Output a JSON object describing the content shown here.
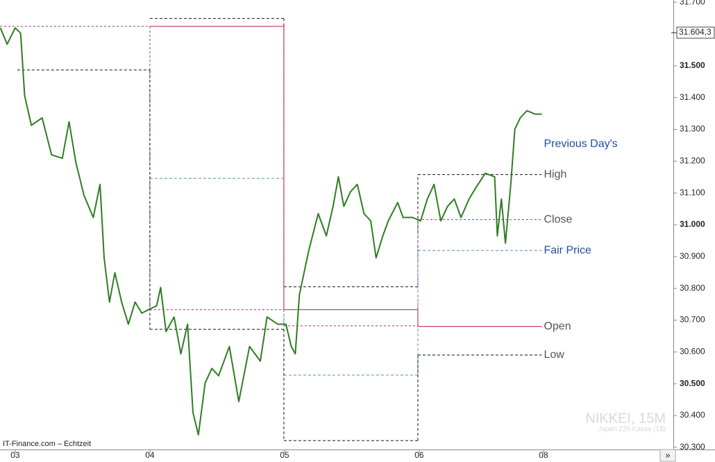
{
  "chart_data": {
    "type": "line",
    "watermark": "NIKKEI, 15M",
    "watermark_sub": "Japan 225 Kassa (1$)",
    "source": "IT-Finance.com – Echtzeit",
    "nav_button": "»",
    "legend_title": "Previous Day's",
    "x": [
      -0.11,
      -0.06,
      0,
      0.04,
      0.07,
      0.12,
      0.2,
      0.27,
      0.35,
      0.4,
      0.45,
      0.51,
      0.58,
      0.63,
      0.66,
      0.7,
      0.74,
      0.79,
      0.84,
      0.89,
      0.94,
      0.99,
      1.05,
      1.08,
      1.12,
      1.18,
      1.23,
      1.28,
      1.32,
      1.36,
      1.41,
      1.46,
      1.51,
      1.59,
      1.66,
      1.74,
      1.82,
      1.87,
      1.95,
      2.01,
      2.05,
      2.08,
      2.11,
      2.18,
      2.25,
      2.31,
      2.36,
      2.4,
      2.44,
      2.49,
      2.54,
      2.59,
      2.64,
      2.68,
      2.73,
      2.77,
      2.84,
      2.88,
      2.95,
      3.01,
      3.06,
      3.11,
      3.16,
      3.21,
      3.26,
      3.31,
      3.37,
      3.42,
      3.49,
      3.56,
      3.58,
      3.61,
      3.64,
      3.68,
      3.71,
      3.75,
      3.8,
      3.86,
      3.91
    ],
    "series": [
      {
        "color": "#2e7d22",
        "values": [
          31619,
          31568,
          31619,
          31603,
          31406,
          31313,
          31336,
          31220,
          31209,
          31324,
          31197,
          31093,
          31023,
          31127,
          30896,
          30757,
          30849,
          30757,
          30687,
          30757,
          30722,
          30733,
          30745,
          30803,
          30664,
          30710,
          30594,
          30687,
          30409,
          30339,
          30502,
          30548,
          30525,
          30617,
          30444,
          30617,
          30571,
          30710,
          30687,
          30687,
          30617,
          30594,
          30780,
          30919,
          31035,
          30965,
          31058,
          31151,
          31058,
          31104,
          31127,
          31035,
          31012,
          30896,
          30965,
          31012,
          31070,
          31023,
          31023,
          31012,
          31081,
          31127,
          31012,
          31058,
          31081,
          31023,
          31081,
          31116,
          31162,
          31151,
          30965,
          31081,
          30942,
          31127,
          31301,
          31336,
          31359,
          31348,
          31348
        ]
      }
    ],
    "levels": [
      {
        "name": "High",
        "color": "#111111",
        "dash": "4 3",
        "label_color": "#555555",
        "segments": [
          {
            "x": [
              1.0,
              1.995
            ],
            "value": 31649
          },
          {
            "x": [
              1.995,
              2.99
            ],
            "value": 30805
          },
          {
            "x": [
              2.99,
              3.91
            ],
            "value": 31158
          }
        ]
      },
      {
        "name": "Close",
        "color": "#9a3a6a",
        "dash": "3 3",
        "label_color": "#555555",
        "segments": [
          {
            "x": [
              -0.113,
              1.0
            ],
            "value": 31624
          },
          {
            "x": [
              1.0,
              1.995
            ],
            "value": 30733
          },
          {
            "x": [
              1.995,
              2.99
            ],
            "value": 30682
          },
          {
            "x": [
              2.99,
              3.91
            ],
            "value": 31016
          }
        ]
      },
      {
        "name": "Fair Price",
        "color": "#4a90d0",
        "dash": "4 3",
        "label_color": "#1f4ea3",
        "segments": [
          {
            "x": [
              1.0,
              1.995
            ],
            "value": 31146
          },
          {
            "x": [
              1.995,
              2.99
            ],
            "value": 30527
          },
          {
            "x": [
              2.99,
              3.91
            ],
            "value": 30919
          }
        ]
      },
      {
        "name": "Open",
        "color": "#c8163c",
        "dash": "",
        "label_color": "#555555",
        "segments": [
          {
            "x": [
              1.0,
              1.995
            ],
            "value": 31624
          },
          {
            "x": [
              1.995,
              2.99
            ],
            "value": 30733
          },
          {
            "x": [
              2.99,
              3.91
            ],
            "value": 30680
          }
        ]
      },
      {
        "name": "Low",
        "color": "#111111",
        "dash": "4 3",
        "label_color": "#555555",
        "segments": [
          {
            "x": [
              0.015,
              1.0
            ],
            "value": 31487
          },
          {
            "x": [
              1.0,
              1.995
            ],
            "value": 30671
          },
          {
            "x": [
              1.995,
              2.99
            ],
            "value": 30321
          },
          {
            "x": [
              2.99,
              3.91
            ],
            "value": 30590
          }
        ]
      }
    ],
    "last_price": {
      "value": 31604.3,
      "label": "31.604,3"
    },
    "xlim": [
      -0.113,
      4.887
    ],
    "xticks": [
      {
        "value": 0,
        "label": "03"
      },
      {
        "value": 1,
        "label": "04"
      },
      {
        "value": 2,
        "label": "05"
      },
      {
        "value": 3,
        "label": "06"
      },
      {
        "value": 3.923,
        "label": "08"
      }
    ],
    "ylim": [
      30293,
      31707
    ],
    "yticks": [
      {
        "value": 30300,
        "label": "30.300"
      },
      {
        "value": 30400,
        "label": "30.400"
      },
      {
        "value": 30500,
        "label": "30.500"
      },
      {
        "value": 30600,
        "label": "30.600"
      },
      {
        "value": 30700,
        "label": "30.700"
      },
      {
        "value": 30800,
        "label": "30.800"
      },
      {
        "value": 30900,
        "label": "30.900"
      },
      {
        "value": 31000,
        "label": "31.000"
      },
      {
        "value": 31100,
        "label": "31.100"
      },
      {
        "value": 31200,
        "label": "31.200"
      },
      {
        "value": 31300,
        "label": "31.300"
      },
      {
        "value": 31400,
        "label": "31.400"
      },
      {
        "value": 31500,
        "label": "31.500"
      },
      {
        "value": 31700,
        "label": "31.700"
      }
    ]
  }
}
